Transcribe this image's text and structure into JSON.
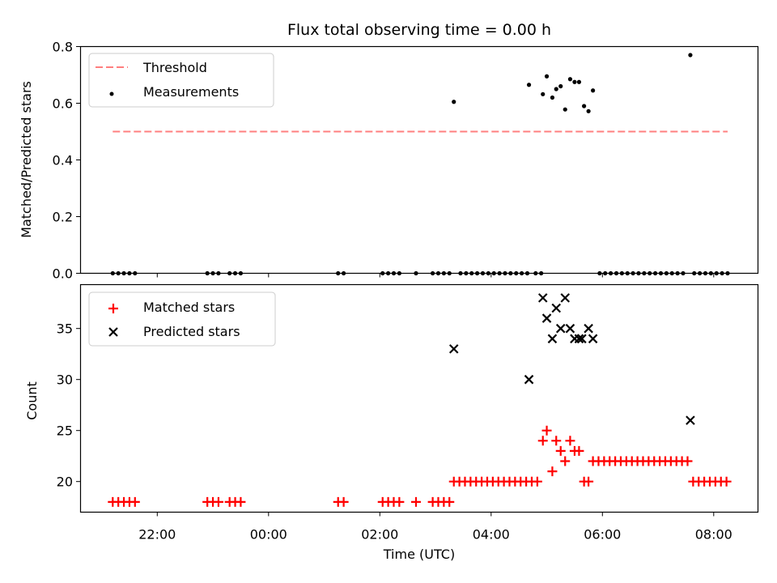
{
  "chart_data": [
    {
      "type": "scatter",
      "title": "Flux total observing time = 0.00 h",
      "xlabel": "",
      "ylabel": "Matched/Predicted stars",
      "ylim": [
        0,
        0.8
      ],
      "yticks": [
        "0.0",
        "0.2",
        "0.4",
        "0.6",
        "0.8"
      ],
      "threshold": {
        "name": "Threshold",
        "value": 0.5,
        "x_start_h": -2.8,
        "x_end_h": 32.2,
        "color": "#ff7f7f"
      },
      "legend": [
        "Threshold",
        "Measurements"
      ],
      "legend_position": "upper-left",
      "series": [
        {
          "name": "Measurements",
          "color": "#000000",
          "points_h_value": [
            [
              -2.8,
              0
            ],
            [
              -2.7,
              0
            ],
            [
              -2.6,
              0
            ],
            [
              -2.5,
              0
            ],
            [
              -2.4,
              0
            ],
            [
              -1.1,
              0
            ],
            [
              -1.0,
              0
            ],
            [
              -0.9,
              0
            ],
            [
              -0.7,
              0
            ],
            [
              -0.6,
              0
            ],
            [
              -0.5,
              0
            ],
            [
              1.25,
              0
            ],
            [
              1.35,
              0
            ],
            [
              2.05,
              0
            ],
            [
              2.15,
              0
            ],
            [
              2.25,
              0
            ],
            [
              2.35,
              0
            ],
            [
              2.65,
              0
            ],
            [
              2.95,
              0
            ],
            [
              3.05,
              0
            ],
            [
              3.15,
              0
            ],
            [
              3.25,
              0
            ],
            [
              3.33,
              0.605
            ],
            [
              3.45,
              0
            ],
            [
              3.55,
              0
            ],
            [
              3.65,
              0
            ],
            [
              3.75,
              0
            ],
            [
              3.85,
              0
            ],
            [
              3.95,
              0
            ],
            [
              4.05,
              0
            ],
            [
              4.15,
              0
            ],
            [
              4.25,
              0
            ],
            [
              4.35,
              0
            ],
            [
              4.45,
              0
            ],
            [
              4.55,
              0
            ],
            [
              4.65,
              0
            ],
            [
              4.68,
              0.665
            ],
            [
              4.8,
              0
            ],
            [
              4.9,
              0
            ],
            [
              4.93,
              0.632
            ],
            [
              5.0,
              0.695
            ],
            [
              5.1,
              0.62
            ],
            [
              5.17,
              0.65
            ],
            [
              5.25,
              0.66
            ],
            [
              5.33,
              0.578
            ],
            [
              5.42,
              0.685
            ],
            [
              5.5,
              0.675
            ],
            [
              5.58,
              0.675
            ],
            [
              5.67,
              0.59
            ],
            [
              5.75,
              0.572
            ],
            [
              5.83,
              0.645
            ],
            [
              5.95,
              0
            ],
            [
              6.05,
              0
            ],
            [
              6.15,
              0
            ],
            [
              6.25,
              0
            ],
            [
              6.35,
              0
            ],
            [
              6.45,
              0
            ],
            [
              6.55,
              0
            ],
            [
              6.65,
              0
            ],
            [
              6.75,
              0
            ],
            [
              6.85,
              0
            ],
            [
              6.95,
              0
            ],
            [
              7.05,
              0
            ],
            [
              7.15,
              0
            ],
            [
              7.25,
              0
            ],
            [
              7.35,
              0
            ],
            [
              7.45,
              0
            ],
            [
              7.58,
              0.77
            ],
            [
              7.65,
              0
            ],
            [
              7.75,
              0
            ],
            [
              7.85,
              0
            ],
            [
              7.95,
              0
            ],
            [
              8.05,
              0
            ],
            [
              8.15,
              0
            ],
            [
              8.25,
              0
            ]
          ]
        }
      ]
    },
    {
      "type": "scatter",
      "title": "",
      "xlabel": "Time (UTC)",
      "ylabel": "Count",
      "ylim": [
        17,
        39.3
      ],
      "yticks": [
        "20",
        "25",
        "30",
        "35"
      ],
      "xticks": [
        "22:00",
        "00:00",
        "02:00",
        "04:00",
        "06:00",
        "08:00"
      ],
      "legend": [
        "Matched stars",
        "Predicted stars"
      ],
      "legend_position": "upper-left",
      "series": [
        {
          "name": "Matched stars",
          "color": "#ff0000",
          "marker": "+",
          "points_h_value": [
            [
              -2.8,
              18
            ],
            [
              -2.7,
              18
            ],
            [
              -2.6,
              18
            ],
            [
              -2.5,
              18
            ],
            [
              -2.4,
              18
            ],
            [
              -1.1,
              18
            ],
            [
              -1.0,
              18
            ],
            [
              -0.9,
              18
            ],
            [
              -0.7,
              18
            ],
            [
              -0.6,
              18
            ],
            [
              -0.5,
              18
            ],
            [
              1.25,
              18
            ],
            [
              1.35,
              18
            ],
            [
              2.05,
              18
            ],
            [
              2.15,
              18
            ],
            [
              2.25,
              18
            ],
            [
              2.35,
              18
            ],
            [
              2.65,
              18
            ],
            [
              2.95,
              18
            ],
            [
              3.05,
              18
            ],
            [
              3.15,
              18
            ],
            [
              3.25,
              18
            ],
            [
              3.33,
              20
            ],
            [
              3.43,
              20
            ],
            [
              3.53,
              20
            ],
            [
              3.63,
              20
            ],
            [
              3.73,
              20
            ],
            [
              3.83,
              20
            ],
            [
              3.93,
              20
            ],
            [
              4.03,
              20
            ],
            [
              4.13,
              20
            ],
            [
              4.23,
              20
            ],
            [
              4.33,
              20
            ],
            [
              4.43,
              20
            ],
            [
              4.53,
              20
            ],
            [
              4.63,
              20
            ],
            [
              4.73,
              20
            ],
            [
              4.83,
              20
            ],
            [
              4.93,
              24
            ],
            [
              5.0,
              25
            ],
            [
              5.1,
              21
            ],
            [
              5.17,
              24
            ],
            [
              5.25,
              23
            ],
            [
              5.33,
              22
            ],
            [
              5.42,
              24
            ],
            [
              5.5,
              23
            ],
            [
              5.58,
              23
            ],
            [
              5.67,
              20
            ],
            [
              5.75,
              20
            ],
            [
              5.83,
              22
            ],
            [
              5.93,
              22
            ],
            [
              6.03,
              22
            ],
            [
              6.13,
              22
            ],
            [
              6.23,
              22
            ],
            [
              6.33,
              22
            ],
            [
              6.43,
              22
            ],
            [
              6.53,
              22
            ],
            [
              6.63,
              22
            ],
            [
              6.73,
              22
            ],
            [
              6.83,
              22
            ],
            [
              6.93,
              22
            ],
            [
              7.03,
              22
            ],
            [
              7.13,
              22
            ],
            [
              7.23,
              22
            ],
            [
              7.33,
              22
            ],
            [
              7.43,
              22
            ],
            [
              7.53,
              22
            ],
            [
              7.63,
              20
            ],
            [
              7.73,
              20
            ],
            [
              7.83,
              20
            ],
            [
              7.93,
              20
            ],
            [
              8.03,
              20
            ],
            [
              8.13,
              20
            ],
            [
              8.23,
              20
            ]
          ]
        },
        {
          "name": "Predicted stars",
          "color": "#000000",
          "marker": "x",
          "points_h_value": [
            [
              3.33,
              33
            ],
            [
              4.68,
              30
            ],
            [
              4.93,
              38
            ],
            [
              5.0,
              36
            ],
            [
              5.1,
              34
            ],
            [
              5.17,
              37
            ],
            [
              5.25,
              35
            ],
            [
              5.33,
              38
            ],
            [
              5.42,
              35
            ],
            [
              5.5,
              34
            ],
            [
              5.58,
              34
            ],
            [
              5.63,
              34
            ],
            [
              5.75,
              35
            ],
            [
              5.83,
              34
            ],
            [
              7.58,
              26
            ]
          ]
        }
      ]
    }
  ]
}
